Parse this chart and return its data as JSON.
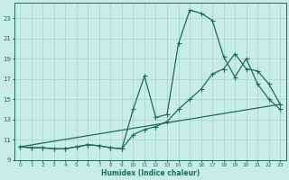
{
  "xlabel": "Humidex (Indice chaleur)",
  "background_color": "#c8ece6",
  "grid_color": "#a8d8cf",
  "line_color": "#1e6b5e",
  "xlim": [
    -0.5,
    23.5
  ],
  "ylim": [
    9,
    24.5
  ],
  "yticks": [
    9,
    11,
    13,
    15,
    17,
    19,
    21,
    23
  ],
  "xticks": [
    0,
    1,
    2,
    3,
    4,
    5,
    6,
    7,
    8,
    9,
    10,
    11,
    12,
    13,
    14,
    15,
    16,
    17,
    18,
    19,
    20,
    21,
    22,
    23
  ],
  "curve1_x": [
    0,
    1,
    2,
    3,
    4,
    5,
    6,
    7,
    8,
    9,
    10,
    11,
    12,
    13,
    14,
    15,
    16,
    17,
    18,
    19,
    20,
    21,
    22,
    23
  ],
  "curve1_y": [
    10.3,
    10.2,
    10.2,
    10.1,
    10.1,
    10.3,
    10.5,
    10.4,
    10.2,
    10.1,
    14.0,
    17.3,
    13.2,
    13.5,
    20.5,
    23.8,
    23.5,
    22.8,
    19.2,
    17.2,
    19.0,
    16.5,
    15.0,
    14.0
  ],
  "curve2_x": [
    0,
    1,
    2,
    3,
    4,
    5,
    6,
    7,
    8,
    9,
    10,
    11,
    12,
    13,
    14,
    15,
    16,
    17,
    18,
    19,
    20,
    21,
    22,
    23
  ],
  "curve2_y": [
    10.3,
    10.2,
    10.2,
    10.1,
    10.1,
    10.3,
    10.5,
    10.4,
    10.2,
    10.1,
    11.5,
    12.0,
    12.3,
    12.8,
    14.0,
    15.0,
    16.0,
    17.5,
    18.0,
    19.5,
    18.0,
    17.8,
    16.5,
    14.5
  ],
  "curve3_x": [
    0,
    23
  ],
  "curve3_y": [
    10.3,
    14.5
  ]
}
